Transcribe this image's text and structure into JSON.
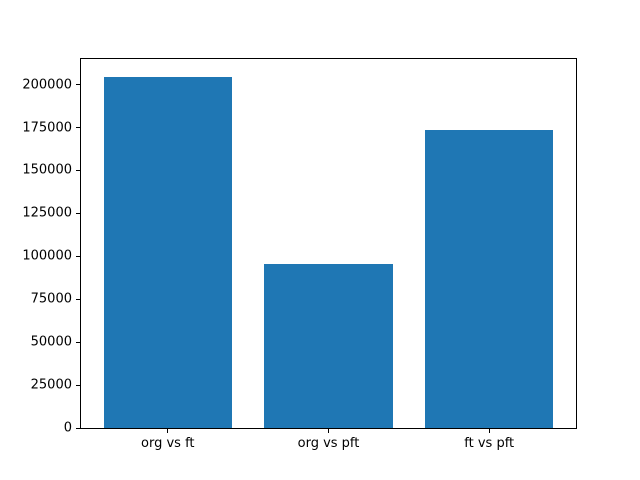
{
  "chart_data": {
    "type": "bar",
    "categories": [
      "org vs ft",
      "org vs pft",
      "ft vs pft"
    ],
    "values": [
      204700,
      95300,
      173300
    ],
    "title": "",
    "xlabel": "",
    "ylabel": "",
    "ytick_labels": [
      "0",
      "25000",
      "50000",
      "75000",
      "100000",
      "125000",
      "150000",
      "175000",
      "200000"
    ],
    "yticks": [
      0,
      25000,
      50000,
      75000,
      100000,
      125000,
      150000,
      175000,
      200000
    ],
    "ylim": [
      0,
      214935
    ],
    "xlim": [
      -0.54,
      2.54
    ],
    "bar_half_width": 0.4,
    "bar_color": "#1f77b4",
    "spine_color": "#000000",
    "tick_color": "#000000",
    "axes_background": "#ffffff",
    "figure_background": "#ffffff",
    "grid": false,
    "legend": "none"
  }
}
